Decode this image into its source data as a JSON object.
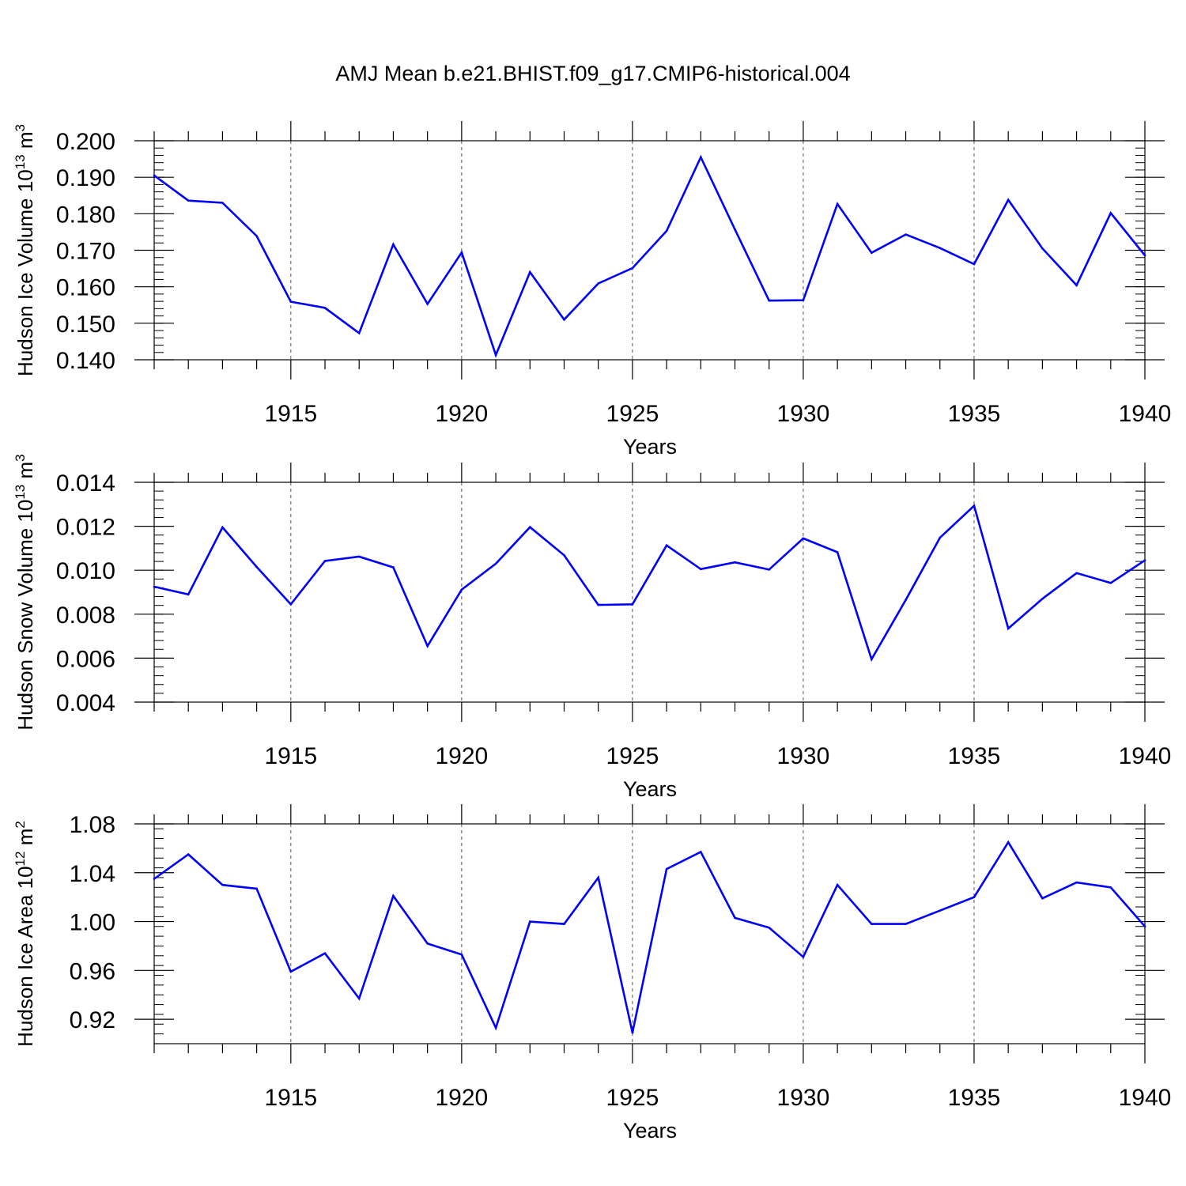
{
  "title": "AMJ Mean b.e21.BHIST.f09_g17.CMIP6-historical.004",
  "colors": {
    "series": "#0000ff",
    "axis": "#000000",
    "grid": "#555555"
  },
  "chart_data": [
    {
      "type": "line",
      "ylabel_main": "Hudson Ice Volume 10",
      "ylabel_exp": "13",
      "ylabel_unit": "m",
      "ylabel_unit_exp": "3",
      "xlabel": "Years",
      "xlim": [
        1911,
        1940
      ],
      "ylim": [
        0.14,
        0.2
      ],
      "yticks": [
        "0.140",
        "0.150",
        "0.160",
        "0.170",
        "0.180",
        "0.190",
        "0.200"
      ],
      "xticks": [
        "1915",
        "1920",
        "1925",
        "1930",
        "1935",
        "1940"
      ],
      "x": [
        1911,
        1912,
        1913,
        1914,
        1915,
        1916,
        1917,
        1918,
        1919,
        1920,
        1921,
        1922,
        1923,
        1924,
        1925,
        1926,
        1927,
        1928,
        1929,
        1930,
        1931,
        1932,
        1933,
        1934,
        1935,
        1936,
        1937,
        1938,
        1939,
        1940
      ],
      "series": [
        {
          "name": "Hudson Ice Volume",
          "values": [
            0.1905,
            0.1836,
            0.183,
            0.1739,
            0.1559,
            0.1542,
            0.1473,
            0.1716,
            0.1553,
            0.1694,
            0.1413,
            0.164,
            0.151,
            0.1609,
            0.1651,
            0.1753,
            0.1955,
            0.1757,
            0.1562,
            0.1563,
            0.1827,
            0.1693,
            0.1743,
            0.1706,
            0.1662,
            0.1838,
            0.1705,
            0.1604,
            0.1802,
            0.1686
          ]
        }
      ]
    },
    {
      "type": "line",
      "ylabel_main": "Hudson Snow Volume 10",
      "ylabel_exp": "13",
      "ylabel_unit": "m",
      "ylabel_unit_exp": "3",
      "xlabel": "Years",
      "xlim": [
        1911,
        1940
      ],
      "ylim": [
        0.004,
        0.014
      ],
      "yticks": [
        "0.004",
        "0.006",
        "0.008",
        "0.010",
        "0.012",
        "0.014"
      ],
      "xticks": [
        "1915",
        "1920",
        "1925",
        "1930",
        "1935",
        "1940"
      ],
      "x": [
        1911,
        1912,
        1913,
        1914,
        1915,
        1916,
        1917,
        1918,
        1919,
        1920,
        1921,
        1922,
        1923,
        1924,
        1925,
        1926,
        1927,
        1928,
        1929,
        1930,
        1931,
        1932,
        1933,
        1934,
        1935,
        1936,
        1937,
        1938,
        1939,
        1940
      ],
      "series": [
        {
          "name": "Hudson Snow Volume",
          "values": [
            0.00925,
            0.0089,
            0.01195,
            0.01015,
            0.00845,
            0.01042,
            0.01062,
            0.01013,
            0.00655,
            0.00912,
            0.0103,
            0.01196,
            0.01068,
            0.00842,
            0.00845,
            0.01113,
            0.01005,
            0.01036,
            0.01003,
            0.01145,
            0.01082,
            0.00595,
            0.00865,
            0.01148,
            0.01293,
            0.00735,
            0.0087,
            0.00987,
            0.00942,
            0.01045
          ]
        }
      ]
    },
    {
      "type": "line",
      "ylabel_main": "Hudson Ice Area 10",
      "ylabel_exp": "12",
      "ylabel_unit": "m",
      "ylabel_unit_exp": "2",
      "xlabel": "Years",
      "xlim": [
        1911,
        1940
      ],
      "ylim": [
        0.9,
        1.08
      ],
      "yticks": [
        "0.92",
        "0.96",
        "1.00",
        "1.04",
        "1.08"
      ],
      "xticks": [
        "1915",
        "1920",
        "1925",
        "1930",
        "1935",
        "1940"
      ],
      "x": [
        1911,
        1912,
        1913,
        1914,
        1915,
        1916,
        1917,
        1918,
        1919,
        1920,
        1921,
        1922,
        1923,
        1924,
        1925,
        1926,
        1927,
        1928,
        1929,
        1930,
        1931,
        1932,
        1933,
        1934,
        1935,
        1936,
        1937,
        1938,
        1939,
        1940
      ],
      "series": [
        {
          "name": "Hudson Ice Area",
          "values": [
            1.035,
            1.055,
            1.03,
            1.027,
            0.959,
            0.974,
            0.937,
            1.021,
            0.982,
            0.973,
            0.913,
            1.0,
            0.998,
            1.036,
            0.909,
            1.043,
            1.057,
            1.003,
            0.995,
            0.971,
            1.03,
            0.998,
            0.998,
            1.009,
            1.02,
            1.065,
            1.019,
            1.032,
            1.028,
            0.996
          ]
        }
      ]
    }
  ]
}
